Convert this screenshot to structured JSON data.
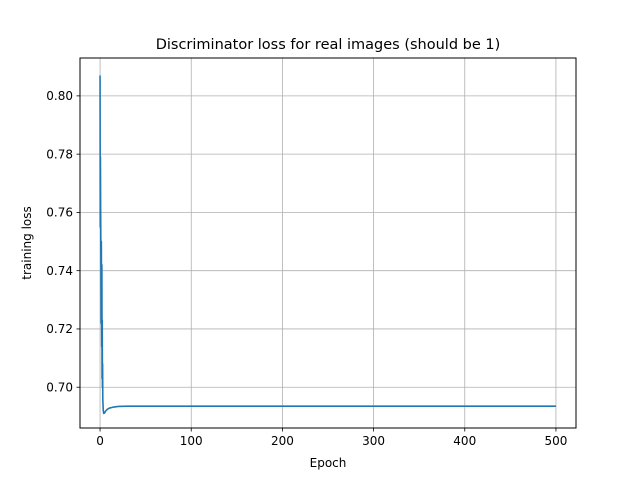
{
  "chart_data": {
    "type": "line",
    "title": "Discriminator loss for real images (should be 1)",
    "xlabel": "Epoch",
    "ylabel": "training loss",
    "xlim": [
      -22,
      522
    ],
    "ylim": [
      0.686,
      0.813
    ],
    "xticks": [
      0,
      100,
      200,
      300,
      400,
      500
    ],
    "yticks": [
      0.7,
      0.72,
      0.74,
      0.76,
      0.78,
      0.8
    ],
    "ytick_labels": [
      "0.70",
      "0.72",
      "0.74",
      "0.76",
      "0.78",
      "0.80"
    ],
    "grid": true,
    "series": [
      {
        "color": "#1f77b4",
        "x": [
          0,
          0.2,
          0.4,
          0.6,
          0.8,
          1.0,
          1.2,
          1.4,
          1.6,
          1.8,
          2.0,
          2.2,
          2.4,
          2.6,
          2.8,
          3.0,
          3.5,
          4,
          5,
          6,
          8,
          10,
          15,
          20,
          30,
          50,
          100,
          200,
          300,
          400,
          500
        ],
        "y": [
          0.807,
          0.755,
          0.779,
          0.762,
          0.752,
          0.74,
          0.722,
          0.75,
          0.733,
          0.714,
          0.742,
          0.703,
          0.723,
          0.7,
          0.708,
          0.696,
          0.692,
          0.691,
          0.6912,
          0.6918,
          0.6924,
          0.6928,
          0.6932,
          0.6934,
          0.6935,
          0.6935,
          0.6935,
          0.6935,
          0.6935,
          0.6935,
          0.6935
        ]
      }
    ]
  }
}
